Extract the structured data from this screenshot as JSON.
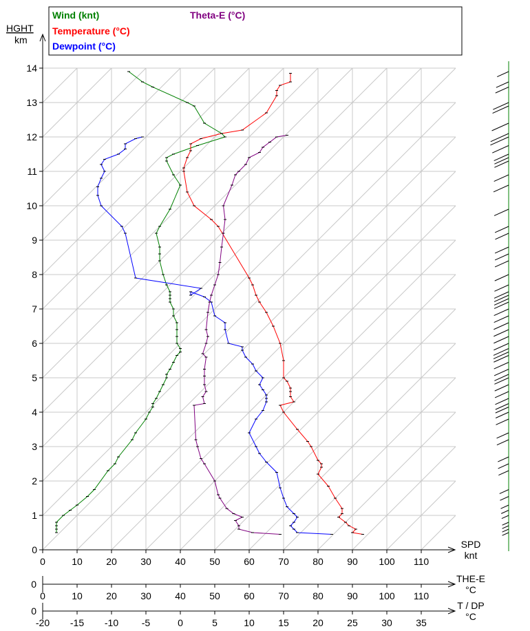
{
  "chart_data": {
    "type": "line",
    "legend": {
      "placement": "top",
      "items": [
        {
          "key": "wind",
          "label": "Wind (knt)",
          "color": "#008000"
        },
        {
          "key": "temperature",
          "label": "Temperature (°C)",
          "color": "#ff0000"
        },
        {
          "key": "dewpoint",
          "label": "Dewpoint (°C)",
          "color": "#0000ff"
        },
        {
          "key": "theta_e",
          "label": "Theta-E (°C)",
          "color": "#800080"
        }
      ]
    },
    "y_axis": {
      "label_top": "HGHT",
      "label_bottom": "km",
      "range": [
        0,
        14
      ],
      "ticks": [
        0,
        1,
        2,
        3,
        4,
        5,
        6,
        7,
        8,
        9,
        10,
        11,
        12,
        13,
        14
      ]
    },
    "x_axes": [
      {
        "key": "spd",
        "label_top": "SPD",
        "label_bottom": "knt",
        "range": [
          0,
          120
        ],
        "ticks": [
          0,
          10,
          20,
          30,
          40,
          50,
          60,
          70,
          80,
          90,
          100,
          110
        ],
        "zero_label": "0"
      },
      {
        "key": "the",
        "label_top": "THE-E",
        "label_bottom": "°C",
        "range": [
          0,
          120
        ],
        "ticks": [
          0,
          10,
          20,
          30,
          40,
          50,
          60,
          70,
          80,
          90,
          100,
          110
        ],
        "zero_label": "0"
      },
      {
        "key": "tdp",
        "label_top": "T / DP",
        "label_bottom": "°C",
        "range": [
          -20,
          40
        ],
        "ticks": [
          -20,
          -15,
          -10,
          -5,
          0,
          5,
          10,
          15,
          20,
          25,
          30,
          35
        ],
        "zero_label": "0"
      }
    ],
    "grid": true,
    "skewed_isotherms": true,
    "series": [
      {
        "name": "Wind (knt)",
        "units": "knt",
        "axis": "spd",
        "color": "#008000",
        "points": [
          [
            4,
            0.5
          ],
          [
            4,
            0.6
          ],
          [
            4,
            0.7
          ],
          [
            4,
            0.8
          ],
          [
            6,
            1.0
          ],
          [
            8,
            1.15
          ],
          [
            10,
            1.3
          ],
          [
            13,
            1.55
          ],
          [
            15,
            1.75
          ],
          [
            19,
            2.3
          ],
          [
            21,
            2.5
          ],
          [
            22,
            2.7
          ],
          [
            26,
            3.2
          ],
          [
            27,
            3.4
          ],
          [
            30,
            3.8
          ],
          [
            31,
            4.0
          ],
          [
            32,
            4.15
          ],
          [
            32,
            4.25
          ],
          [
            33,
            4.4
          ],
          [
            34,
            4.6
          ],
          [
            35,
            4.8
          ],
          [
            36,
            5.0
          ],
          [
            36,
            5.1
          ],
          [
            37,
            5.25
          ],
          [
            38,
            5.45
          ],
          [
            39,
            5.65
          ],
          [
            40,
            5.75
          ],
          [
            40,
            5.85
          ],
          [
            39,
            6.0
          ],
          [
            39,
            6.2
          ],
          [
            39,
            6.4
          ],
          [
            39,
            6.6
          ],
          [
            38,
            6.8
          ],
          [
            38,
            7.0
          ],
          [
            37,
            7.2
          ],
          [
            37,
            7.3
          ],
          [
            37,
            7.4
          ],
          [
            37,
            7.5
          ],
          [
            36,
            7.7
          ],
          [
            35,
            8.0
          ],
          [
            34,
            8.4
          ],
          [
            34,
            8.6
          ],
          [
            34,
            8.8
          ],
          [
            33,
            9.2
          ],
          [
            34,
            9.4
          ],
          [
            37,
            9.9
          ],
          [
            40,
            10.6
          ],
          [
            38,
            10.9
          ],
          [
            36,
            11.3
          ],
          [
            36,
            11.4
          ],
          [
            38,
            11.5
          ],
          [
            45,
            11.75
          ],
          [
            53,
            12.0
          ],
          [
            52,
            12.1
          ],
          [
            47,
            12.4
          ],
          [
            44,
            12.9
          ],
          [
            42,
            13.0
          ],
          [
            32,
            13.45
          ],
          [
            29,
            13.6
          ],
          [
            25,
            13.9
          ]
        ]
      },
      {
        "name": "Temperature (°C)",
        "units": "°C",
        "axis": "tdp",
        "color": "#ff0000",
        "points": [
          [
            26.5,
            0.45
          ],
          [
            25,
            0.5
          ],
          [
            25.5,
            0.6
          ],
          [
            24.5,
            0.7
          ],
          [
            24,
            0.8
          ],
          [
            23,
            0.95
          ],
          [
            23.5,
            1.05
          ],
          [
            23.5,
            1.2
          ],
          [
            22.5,
            1.5
          ],
          [
            21.5,
            1.85
          ],
          [
            20,
            2.2
          ],
          [
            20.5,
            2.4
          ],
          [
            20.5,
            2.5
          ],
          [
            20,
            2.6
          ],
          [
            19,
            3.0
          ],
          [
            18.5,
            3.15
          ],
          [
            17,
            3.5
          ],
          [
            15,
            4.0
          ],
          [
            14.5,
            4.2
          ],
          [
            16.5,
            4.3
          ],
          [
            16,
            4.45
          ],
          [
            16,
            4.6
          ],
          [
            16,
            4.7
          ],
          [
            15.5,
            4.9
          ],
          [
            15,
            5.0
          ],
          [
            15,
            5.5
          ],
          [
            14.5,
            6.0
          ],
          [
            13.5,
            6.5
          ],
          [
            12.5,
            6.9
          ],
          [
            11.5,
            7.2
          ],
          [
            11,
            7.4
          ],
          [
            10.5,
            7.7
          ],
          [
            10,
            7.9
          ],
          [
            5.5,
            9.4
          ],
          [
            4.5,
            9.6
          ],
          [
            2,
            10.0
          ],
          [
            1,
            10.4
          ],
          [
            0.5,
            11.0
          ],
          [
            0.5,
            11.1
          ],
          [
            1,
            11.4
          ],
          [
            1.5,
            11.6
          ],
          [
            1.5,
            11.8
          ],
          [
            3,
            11.95
          ],
          [
            6,
            12.1
          ],
          [
            9,
            12.2
          ],
          [
            12.5,
            12.7
          ],
          [
            14,
            13.2
          ],
          [
            14,
            13.35
          ],
          [
            14.5,
            13.5
          ],
          [
            16,
            13.6
          ],
          [
            16,
            13.85
          ]
        ]
      },
      {
        "name": "Dewpoint (°C)",
        "units": "°C",
        "axis": "tdp",
        "color": "#0000ff",
        "points": [
          [
            22,
            0.45
          ],
          [
            17,
            0.5
          ],
          [
            16.5,
            0.6
          ],
          [
            16,
            0.7
          ],
          [
            16.5,
            0.8
          ],
          [
            17,
            0.95
          ],
          [
            16.5,
            1.05
          ],
          [
            15.5,
            1.25
          ],
          [
            15,
            1.5
          ],
          [
            14.5,
            1.8
          ],
          [
            14,
            2.25
          ],
          [
            12.5,
            2.55
          ],
          [
            11.5,
            2.8
          ],
          [
            11,
            3.0
          ],
          [
            10,
            3.4
          ],
          [
            11,
            3.8
          ],
          [
            12,
            4.05
          ],
          [
            12.5,
            4.3
          ],
          [
            12.5,
            4.4
          ],
          [
            12.5,
            4.5
          ],
          [
            12,
            4.65
          ],
          [
            11.5,
            4.8
          ],
          [
            12,
            5.0
          ],
          [
            11,
            5.2
          ],
          [
            10.5,
            5.4
          ],
          [
            9.5,
            5.6
          ],
          [
            9,
            5.8
          ],
          [
            9,
            5.9
          ],
          [
            7,
            6.0
          ],
          [
            6.5,
            6.4
          ],
          [
            6.5,
            6.6
          ],
          [
            5,
            6.8
          ],
          [
            4.5,
            7.2
          ],
          [
            3.5,
            7.35
          ],
          [
            1.5,
            7.5
          ],
          [
            1.5,
            7.4
          ],
          [
            3,
            7.6
          ],
          [
            -6.5,
            7.9
          ],
          [
            -8,
            9.2
          ],
          [
            -8.5,
            9.4
          ],
          [
            -11.5,
            10.0
          ],
          [
            -12,
            10.3
          ],
          [
            -12,
            10.55
          ],
          [
            -11.5,
            10.8
          ],
          [
            -11,
            11.0
          ],
          [
            -11.5,
            11.2
          ],
          [
            -11,
            11.35
          ],
          [
            -9,
            11.5
          ],
          [
            -8,
            11.65
          ],
          [
            -8,
            11.8
          ],
          [
            -6.5,
            11.95
          ],
          [
            -5.5,
            12.0
          ]
        ]
      },
      {
        "name": "Theta-E (°C)",
        "units": "°C",
        "axis": "the",
        "color": "#800080",
        "points": [
          [
            69,
            0.45
          ],
          [
            61,
            0.5
          ],
          [
            57,
            0.6
          ],
          [
            57,
            0.7
          ],
          [
            56,
            0.85
          ],
          [
            58,
            0.95
          ],
          [
            55.5,
            1.05
          ],
          [
            53.5,
            1.2
          ],
          [
            51.5,
            1.5
          ],
          [
            51,
            1.6
          ],
          [
            50,
            2.0
          ],
          [
            47,
            2.5
          ],
          [
            46,
            2.65
          ],
          [
            45,
            3.0
          ],
          [
            44.5,
            3.2
          ],
          [
            44,
            4.2
          ],
          [
            47,
            4.25
          ],
          [
            46.5,
            4.45
          ],
          [
            47.5,
            4.6
          ],
          [
            47,
            4.8
          ],
          [
            47,
            5.05
          ],
          [
            47,
            5.25
          ],
          [
            47.5,
            5.6
          ],
          [
            46.5,
            5.7
          ],
          [
            47.5,
            6.0
          ],
          [
            48,
            6.2
          ],
          [
            47.5,
            6.4
          ],
          [
            48,
            6.9
          ],
          [
            48.5,
            7.2
          ],
          [
            49,
            7.4
          ],
          [
            50,
            7.7
          ],
          [
            51,
            8.0
          ],
          [
            51.5,
            8.35
          ],
          [
            52,
            8.8
          ],
          [
            52.5,
            9.2
          ],
          [
            53,
            9.6
          ],
          [
            52.5,
            10.0
          ],
          [
            55,
            10.6
          ],
          [
            56,
            10.9
          ],
          [
            57,
            11.0
          ],
          [
            59,
            11.2
          ],
          [
            60,
            11.4
          ],
          [
            63,
            11.55
          ],
          [
            64,
            11.7
          ],
          [
            66,
            11.85
          ],
          [
            68,
            12.0
          ],
          [
            71,
            12.05
          ]
        ]
      }
    ],
    "wind_barb_column": true
  }
}
